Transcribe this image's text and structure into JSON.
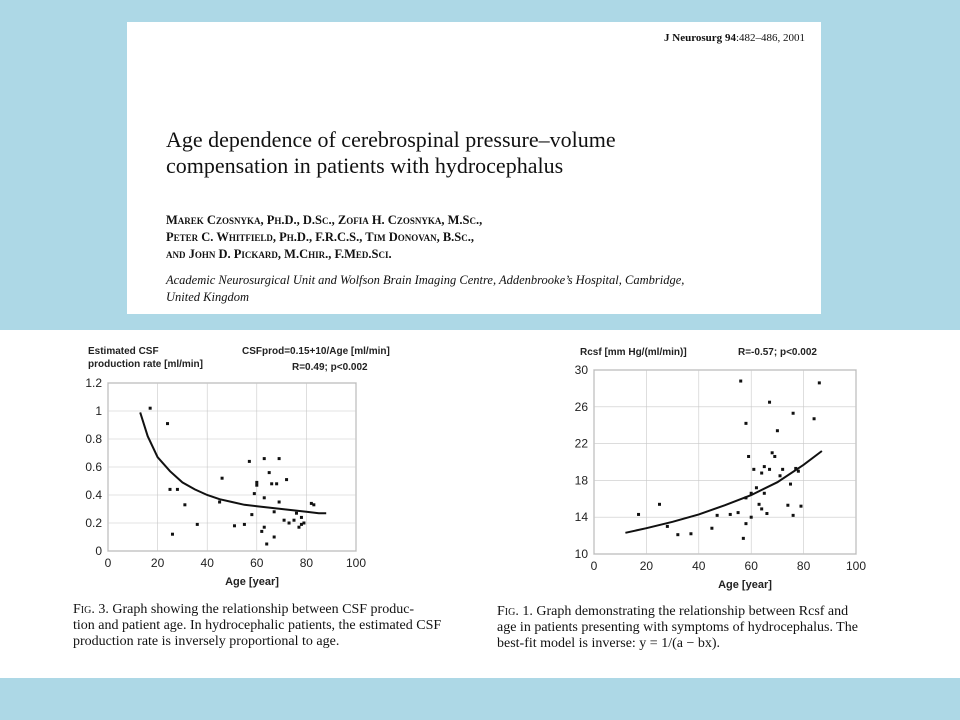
{
  "header": {
    "journal": "J Neurosurg",
    "volume": "94",
    "pages": ":482–486, 2001",
    "title_line1": "Age dependence of cerebrospinal pressure–volume",
    "title_line2": "compensation in patients with hydrocephalus",
    "authors_line1": "Marek Czosnyka, Ph.D., D.Sc., Zofia H. Czosnyka, M.Sc.,",
    "authors_line2": "Peter C. Whitfield, Ph.D., F.R.C.S., Tim Donovan, B.Sc.,",
    "authors_line3": "and John D. Pickard, M.Chir., F.Med.Sci.",
    "affiliation_line1": "Academic Neurosurgical Unit and Wolfson Brain Imaging Centre, Addenbrooke’s Hospital, Cambridge,",
    "affiliation_line2": "United Kingdom"
  },
  "captions": {
    "fig3_label": "Fig. 3.",
    "fig3_line1": "Graph showing the relationship between CSF produc-",
    "fig3_line2": "tion and patient age. In hydrocephalic patients, the estimated CSF",
    "fig3_line3": "production rate is inversely proportional to age.",
    "fig1_label": "Fig. 1.",
    "fig1_line1": "Graph demonstrating the relationship between Rcsf and",
    "fig1_line2": "age in patients presenting with symptoms of hydrocephalus. The",
    "fig1_line3": "best-fit model is inverse: y = 1/(a − bx)."
  },
  "chart_data": [
    {
      "type": "scatter",
      "ylabel_line1": "Estimated CSF",
      "ylabel_line2": "production rate [ml/min]",
      "formula": "CSFprod=0.15+10/Age [ml/min]",
      "stats": "R=0.49; p<0.002",
      "xlabel": "Age [year]",
      "xlim": [
        0,
        100
      ],
      "ylim": [
        0,
        1.2
      ],
      "x_ticks": [
        "0",
        "20",
        "40",
        "60",
        "80",
        "100"
      ],
      "y_ticks": [
        "0",
        "0.2",
        "0.4",
        "0.6",
        "0.8",
        "1",
        "1.2"
      ],
      "grid": true,
      "points": [
        [
          17,
          1.02
        ],
        [
          24,
          0.91
        ],
        [
          25,
          0.44
        ],
        [
          26,
          0.12
        ],
        [
          28,
          0.44
        ],
        [
          31,
          0.33
        ],
        [
          36,
          0.19
        ],
        [
          45,
          0.35
        ],
        [
          46,
          0.52
        ],
        [
          51,
          0.18
        ],
        [
          55,
          0.19
        ],
        [
          57,
          0.64
        ],
        [
          58,
          0.26
        ],
        [
          59,
          0.41
        ],
        [
          60,
          0.47
        ],
        [
          60,
          0.49
        ],
        [
          62,
          0.14
        ],
        [
          63,
          0.17
        ],
        [
          63,
          0.38
        ],
        [
          63,
          0.66
        ],
        [
          64,
          0.05
        ],
        [
          65,
          0.56
        ],
        [
          66,
          0.48
        ],
        [
          67,
          0.1
        ],
        [
          67,
          0.28
        ],
        [
          68,
          0.48
        ],
        [
          69,
          0.66
        ],
        [
          69,
          0.35
        ],
        [
          71,
          0.22
        ],
        [
          72,
          0.51
        ],
        [
          73,
          0.2
        ],
        [
          75,
          0.22
        ],
        [
          76,
          0.27
        ],
        [
          77,
          0.17
        ],
        [
          78,
          0.24
        ],
        [
          78,
          0.19
        ],
        [
          79,
          0.2
        ],
        [
          82,
          0.34
        ],
        [
          83,
          0.33
        ]
      ],
      "fit_curve": {
        "x": [
          13,
          16,
          20,
          25,
          30,
          35,
          40,
          45,
          50,
          55,
          60,
          65,
          70,
          75,
          80,
          85,
          88
        ],
        "y": [
          0.99,
          0.82,
          0.67,
          0.57,
          0.49,
          0.44,
          0.4,
          0.37,
          0.35,
          0.33,
          0.32,
          0.31,
          0.3,
          0.29,
          0.28,
          0.27,
          0.27
        ]
      }
    },
    {
      "type": "scatter",
      "ylabel": "Rcsf [mm Hg/(ml/min)]",
      "stats": "R=-0.57; p<0.002",
      "xlabel": "Age [year]",
      "xlim": [
        0,
        100
      ],
      "ylim": [
        10,
        30
      ],
      "x_ticks": [
        "0",
        "20",
        "40",
        "60",
        "80",
        "100"
      ],
      "y_ticks": [
        "10",
        "14",
        "18",
        "22",
        "26",
        "30"
      ],
      "grid": true,
      "points": [
        [
          17,
          14.3
        ],
        [
          25,
          15.4
        ],
        [
          28,
          13.0
        ],
        [
          32,
          12.1
        ],
        [
          37,
          12.2
        ],
        [
          45,
          12.8
        ],
        [
          47,
          14.2
        ],
        [
          52,
          14.3
        ],
        [
          55,
          14.5
        ],
        [
          56,
          28.8
        ],
        [
          57,
          11.7
        ],
        [
          58,
          13.3
        ],
        [
          58,
          16.1
        ],
        [
          58,
          24.2
        ],
        [
          59,
          20.6
        ],
        [
          60,
          14.0
        ],
        [
          60,
          16.6
        ],
        [
          61,
          19.2
        ],
        [
          62,
          17.2
        ],
        [
          63,
          15.4
        ],
        [
          64,
          14.9
        ],
        [
          64,
          18.8
        ],
        [
          65,
          19.5
        ],
        [
          65,
          16.6
        ],
        [
          66,
          14.4
        ],
        [
          67,
          19.2
        ],
        [
          67,
          26.5
        ],
        [
          68,
          21.0
        ],
        [
          69,
          20.6
        ],
        [
          70,
          23.4
        ],
        [
          71,
          18.5
        ],
        [
          72,
          19.2
        ],
        [
          74,
          15.3
        ],
        [
          75,
          17.6
        ],
        [
          76,
          25.3
        ],
        [
          76,
          14.2
        ],
        [
          77,
          19.3
        ],
        [
          78,
          19.0
        ],
        [
          79,
          15.2
        ],
        [
          84,
          24.7
        ],
        [
          86,
          28.6
        ]
      ],
      "fit_curve": {
        "x": [
          12,
          20,
          30,
          40,
          50,
          60,
          70,
          80,
          87
        ],
        "y": [
          12.3,
          12.8,
          13.5,
          14.3,
          15.3,
          16.4,
          17.8,
          19.7,
          21.2
        ]
      }
    }
  ]
}
